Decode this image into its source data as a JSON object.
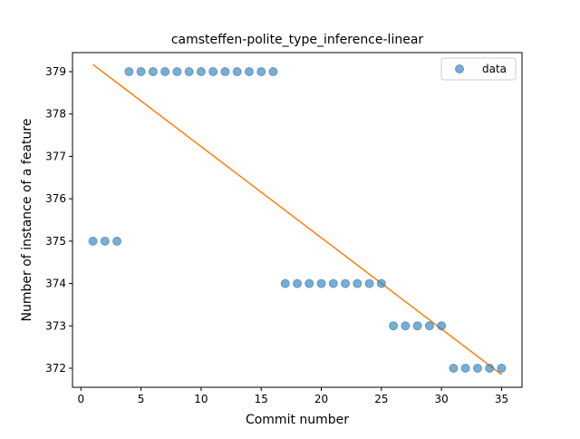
{
  "chart_data": {
    "type": "scatter",
    "title": "camsteffen-polite_type_inference-linear",
    "xlabel": "Commit number",
    "ylabel": "Number of instance of a feature",
    "xlim": [
      -0.7,
      36.7
    ],
    "ylim": [
      371.55,
      379.45
    ],
    "xticks": [
      0,
      5,
      10,
      15,
      20,
      25,
      30,
      35
    ],
    "yticks": [
      372,
      373,
      374,
      375,
      376,
      377,
      378,
      379
    ],
    "legend": {
      "position": "top-right",
      "entries": [
        "data"
      ]
    },
    "series": [
      {
        "name": "data",
        "kind": "scatter",
        "color": "#1f77b4",
        "opacity": 0.6,
        "x": [
          1,
          2,
          3,
          4,
          5,
          6,
          7,
          8,
          9,
          10,
          11,
          12,
          13,
          14,
          15,
          16,
          17,
          18,
          19,
          20,
          21,
          22,
          23,
          24,
          25,
          26,
          27,
          28,
          29,
          30,
          31,
          32,
          33,
          34,
          35
        ],
        "y": [
          375,
          375,
          375,
          379,
          379,
          379,
          379,
          379,
          379,
          379,
          379,
          379,
          379,
          379,
          379,
          379,
          374,
          374,
          374,
          374,
          374,
          374,
          374,
          374,
          374,
          373,
          373,
          373,
          373,
          373,
          372,
          372,
          372,
          372,
          372
        ]
      },
      {
        "kind": "line",
        "color": "#ff7f0e",
        "x": [
          1,
          35
        ],
        "y": [
          379.17,
          371.85
        ]
      }
    ]
  }
}
